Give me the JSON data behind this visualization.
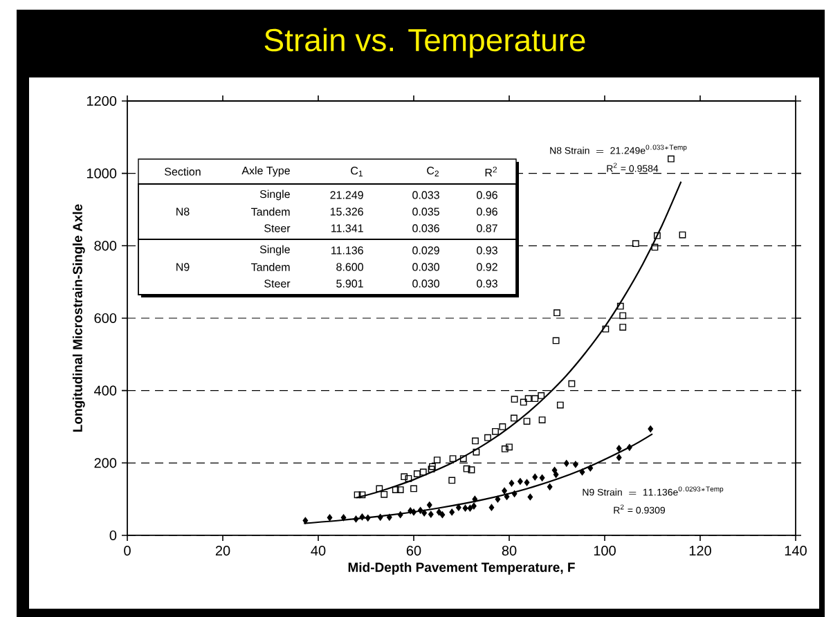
{
  "chart_data": {
    "type": "scatter",
    "title": "Strain vs. Temperature",
    "xlabel": "Mid-Depth Pavement Temperature, F",
    "ylabel": "Longitudinal Microstrain-Single Axle",
    "xlim": [
      0,
      140
    ],
    "ylim": [
      0,
      1200
    ],
    "xticks": [
      0,
      20,
      40,
      60,
      80,
      100,
      120,
      140
    ],
    "yticks": [
      0,
      200,
      400,
      600,
      800,
      1000,
      1200
    ],
    "grid": "y",
    "series": [
      {
        "marker": "square",
        "color": "#000000",
        "x": [
          48.2,
          49.2,
          52.8,
          53.8,
          56.2,
          57.2,
          58.0,
          58.9,
          60.0,
          60.7,
          62.0,
          63.7,
          63.9,
          64.9,
          68.0,
          68.2,
          70.4,
          71.1,
          72.1,
          72.9,
          73.1,
          75.5,
          77.1,
          78.6,
          79.1,
          80.0,
          81.1,
          81.0,
          83.0,
          84.0,
          85.4,
          86.7,
          83.7,
          86.9,
          90.7,
          93.1,
          89.8,
          90.0,
          100.2,
          103.3,
          103.8,
          103.8,
          106.5,
          110.5,
          111.0,
          113.9,
          116.3
        ],
        "values": [
          112,
          112,
          129,
          113,
          126,
          126,
          162,
          157,
          129,
          170,
          175,
          183,
          190,
          208,
          152,
          212,
          212,
          184,
          181,
          261,
          230,
          270,
          287,
          300,
          239,
          244,
          376,
          324,
          368,
          378,
          378,
          386,
          315,
          319,
          360,
          419,
          538,
          615,
          570,
          633,
          607,
          575,
          806,
          796,
          828,
          1040,
          830
        ]
      },
      {
        "marker": "diamond",
        "color": "#000000",
        "x": [
          37.3,
          42.4,
          45.3,
          47.9,
          49.2,
          50.4,
          53.0,
          54.9,
          57.2,
          59.3,
          60.0,
          61.4,
          62.2,
          63.3,
          63.6,
          65.3,
          66.0,
          68.0,
          69.4,
          70.8,
          71.8,
          72.8,
          72.6,
          76.3,
          77.6,
          79.0,
          79.5,
          80.5,
          81.1,
          82.3,
          83.7,
          84.4,
          85.4,
          86.9,
          88.5,
          89.5,
          89.8,
          92.0,
          93.9,
          95.3,
          97.0,
          103.0,
          103.0,
          105.2,
          109.6
        ],
        "values": [
          41,
          49,
          49,
          45,
          51,
          48,
          50,
          50,
          57,
          68,
          64,
          69,
          62,
          84,
          58,
          64,
          57,
          64,
          77,
          75,
          75,
          100,
          81,
          77,
          100,
          123,
          107,
          144,
          115,
          149,
          146,
          106,
          161,
          159,
          134,
          180,
          168,
          199,
          196,
          175,
          186,
          215,
          240,
          243,
          294
        ]
      },
      {
        "type": "line",
        "marker": "none",
        "color": "#000000",
        "x": [
          48,
          52,
          56,
          60,
          64,
          68,
          72,
          76,
          80,
          84,
          88,
          92,
          96,
          100,
          104,
          108,
          112,
          116
        ],
        "values": [
          104,
          118,
          135,
          154,
          176,
          200,
          229,
          261,
          298,
          340,
          388,
          442,
          505,
          576,
          658,
          750,
          856,
          977
        ]
      },
      {
        "type": "line",
        "marker": "none",
        "color": "#000000",
        "x": [
          37,
          45,
          55,
          65,
          75,
          85,
          95,
          105,
          110
        ],
        "values": [
          33,
          42,
          56,
          75,
          100,
          134,
          180,
          242,
          280
        ]
      }
    ],
    "annotations": [
      "\\mathrm{N8\\ Strain\\ =\\ 21.249e}^{\\mathrm{0.033*Temp}}",
      "R$^{2}$ = 0.9584",
      "\\mathrm{N9\\ Strain\\ =\\ 11.136e}^{\\mathrm{0.0293*Temp}}",
      "R$^{2}$ = 0.9309",
      "Section",
      "Axle Type",
      "C$_{1}$",
      "C$_{2}$",
      "R$^{2}$",
      "N8",
      "Single",
      "21.249",
      "0.033",
      "0.96",
      "Tandem",
      "15.326",
      "0.035",
      "0.96",
      "Steer",
      "11.341",
      "0.036",
      "0.87",
      "N9",
      "Single",
      "11.136",
      "0.029",
      "0.93",
      "Tandem",
      "8.600",
      "0.030",
      "0.92",
      "Steer",
      "5.901",
      "0.030",
      "0.93"
    ]
  }
}
